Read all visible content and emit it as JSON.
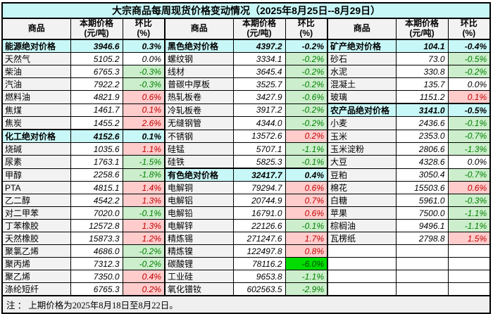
{
  "title": "大宗商品每周现货价格变动情况（2025年8月25日--8月29日）",
  "note": "注 ： 上期价格为2025年8月18日至8月22日。",
  "header": {
    "commodity": "商品",
    "price1": "本期价格",
    "price2": "(元/吨)",
    "pct1": "环比",
    "pct2": "(%)"
  },
  "colors": {
    "section_bg": "#C8F7F7",
    "header_bg": "#F2F2F2",
    "name_bg": "#F2F2F2",
    "up_bg": "#FFCCCC",
    "up_text": "#C00000",
    "down_bg": "#CCEECC",
    "down_text": "#008000",
    "down_strong_bg": "#00DC00",
    "down_strong_text": "#004D00",
    "footer_bg": "#EFEFEF"
  },
  "groups": [
    {
      "rows": [
        {
          "name": "能源绝对价格",
          "price": "3946.6",
          "pct": "0.3%",
          "kind": "section"
        },
        {
          "name": "天然气",
          "price": "5105.2",
          "pct": "0.0%",
          "kind": "flat"
        },
        {
          "name": "柴油",
          "price": "6765.3",
          "pct": "-0.3%",
          "kind": "down"
        },
        {
          "name": "汽油",
          "price": "7922.2",
          "pct": "-0.3%",
          "kind": "down"
        },
        {
          "name": "燃料油",
          "price": "4821.9",
          "pct": "0.6%",
          "kind": "up"
        },
        {
          "name": "焦煤",
          "price": "1461.7",
          "pct": "0.1%",
          "kind": "up"
        },
        {
          "name": "焦炭",
          "price": "1455.2",
          "pct": "2.6%",
          "kind": "up"
        },
        {
          "name": "化工绝对价格",
          "price": "4152.6",
          "pct": "0.1%",
          "kind": "section"
        },
        {
          "name": "烧碱",
          "price": "1035.6",
          "pct": "1.1%",
          "kind": "up"
        },
        {
          "name": "尿素",
          "price": "1763.1",
          "pct": "-1.5%",
          "kind": "down"
        },
        {
          "name": "甲醇",
          "price": "2258.6",
          "pct": "-1.8%",
          "kind": "down"
        },
        {
          "name": "PTA",
          "price": "4815.1",
          "pct": "1.4%",
          "kind": "up"
        },
        {
          "name": "乙二醇",
          "price": "4542.2",
          "pct": "1.3%",
          "kind": "up"
        },
        {
          "name": "对二甲苯",
          "price": "7020.0",
          "pct": "-0.1%",
          "kind": "down"
        },
        {
          "name": "丁苯橡胶",
          "price": "12572.8",
          "pct": "1.3%",
          "kind": "up"
        },
        {
          "name": "天然橡胶",
          "price": "15873.3",
          "pct": "1.2%",
          "kind": "up"
        },
        {
          "name": "聚氯乙烯",
          "price": "4686.0",
          "pct": "-0.2%",
          "kind": "down"
        },
        {
          "name": "聚丙烯",
          "price": "7312.3",
          "pct": "-0.2%",
          "kind": "down"
        },
        {
          "name": "聚乙烯",
          "price": "7350.0",
          "pct": "0.4%",
          "kind": "up"
        },
        {
          "name": "涤纶短纤",
          "price": "6765.3",
          "pct": "0.2%",
          "kind": "up"
        }
      ]
    },
    {
      "rows": [
        {
          "name": "黑色绝对价格",
          "price": "4397.2",
          "pct": "-0.2%",
          "kind": "section"
        },
        {
          "name": "螺纹钢",
          "price": "3334.1",
          "pct": "-0.2%",
          "kind": "down"
        },
        {
          "name": "线材",
          "price": "3645.4",
          "pct": "-0.2%",
          "kind": "down"
        },
        {
          "name": "普碳中厚板",
          "price": "3525.7",
          "pct": "-0.2%",
          "kind": "down"
        },
        {
          "name": "热轧板卷",
          "price": "3427.9",
          "pct": "-0.6%",
          "kind": "down"
        },
        {
          "name": "冷轧板卷",
          "price": "3917.2",
          "pct": "-0.2%",
          "kind": "down"
        },
        {
          "name": "无缝钢管",
          "price": "4344.0",
          "pct": "-0.2%",
          "kind": "down"
        },
        {
          "name": "不锈钢",
          "price": "13572.6",
          "pct": "0.2%",
          "kind": "up"
        },
        {
          "name": "硅锰",
          "price": "5707.1",
          "pct": "-1.1%",
          "kind": "down"
        },
        {
          "name": "硅铁",
          "price": "5825.3",
          "pct": "-0.1%",
          "kind": "down"
        },
        {
          "name": "有色绝对价格",
          "price": "32417.7",
          "pct": "0.4%",
          "kind": "section"
        },
        {
          "name": "电解铜",
          "price": "79294.7",
          "pct": "0.6%",
          "kind": "up"
        },
        {
          "name": "电解铝",
          "price": "20744.9",
          "pct": "0.7%",
          "kind": "up"
        },
        {
          "name": "电解铅",
          "price": "16791.0",
          "pct": "0.6%",
          "kind": "up"
        },
        {
          "name": "电解锌",
          "price": "22126.6",
          "pct": "-0.1%",
          "kind": "down"
        },
        {
          "name": "精炼锡",
          "price": "271247.6",
          "pct": "1.7%",
          "kind": "up"
        },
        {
          "name": "精炼镍",
          "price": "122497.8",
          "pct": "0.8%",
          "kind": "up"
        },
        {
          "name": "碳酸锂",
          "price": "78116.2",
          "pct": "-6.0%",
          "kind": "down-max"
        },
        {
          "name": "工业硅",
          "price": "9653.8",
          "pct": "-1.1%",
          "kind": "down"
        },
        {
          "name": "氧化镨钕",
          "price": "602563.5",
          "pct": "-2.9%",
          "kind": "down"
        }
      ]
    },
    {
      "rows": [
        {
          "name": "矿产绝对价格",
          "price": "104.1",
          "pct": "-0.4%",
          "kind": "section"
        },
        {
          "name": "砂石",
          "price": "73.0",
          "pct": "-0.5%",
          "kind": "down"
        },
        {
          "name": "水泥",
          "price": "330.8",
          "pct": "-0.2%",
          "kind": "down"
        },
        {
          "name": "混凝土",
          "price": "135.7",
          "pct": "0.0%",
          "kind": "flat"
        },
        {
          "name": "玻璃",
          "price": "1151.2",
          "pct": "0.1%",
          "kind": "up"
        },
        {
          "name": "农产品绝对价格",
          "price": "3141.0",
          "pct": "-0.5%",
          "kind": "section"
        },
        {
          "name": "小麦",
          "price": "2436.6",
          "pct": "-0.1%",
          "kind": "down"
        },
        {
          "name": "玉米",
          "price": "2353.0",
          "pct": "-0.7%",
          "kind": "down"
        },
        {
          "name": "玉米淀粉",
          "price": "2806.6",
          "pct": "-1.3%",
          "kind": "down"
        },
        {
          "name": "大豆",
          "price": "4328.6",
          "pct": "0.0%",
          "kind": "flat"
        },
        {
          "name": "豆粕",
          "price": "3050.4",
          "pct": "-0.7%",
          "kind": "down"
        },
        {
          "name": "棉花",
          "price": "15503.6",
          "pct": "0.6%",
          "kind": "up"
        },
        {
          "name": "白糖",
          "price": "5961.0",
          "pct": "-0.3%",
          "kind": "down"
        },
        {
          "name": "苹果",
          "price": "7500.0",
          "pct": "-1.1%",
          "kind": "down"
        },
        {
          "name": "棕榈油",
          "price": "9496.1",
          "pct": "-1.1%",
          "kind": "down"
        },
        {
          "name": "瓦楞纸",
          "price": "2798.8",
          "pct": "1.5%",
          "kind": "up"
        },
        {
          "name": "",
          "price": "",
          "pct": "",
          "kind": "empty"
        },
        {
          "name": "",
          "price": "",
          "pct": "",
          "kind": "empty"
        },
        {
          "name": "",
          "price": "",
          "pct": "",
          "kind": "empty"
        },
        {
          "name": "",
          "price": "",
          "pct": "",
          "kind": "empty"
        }
      ]
    }
  ]
}
